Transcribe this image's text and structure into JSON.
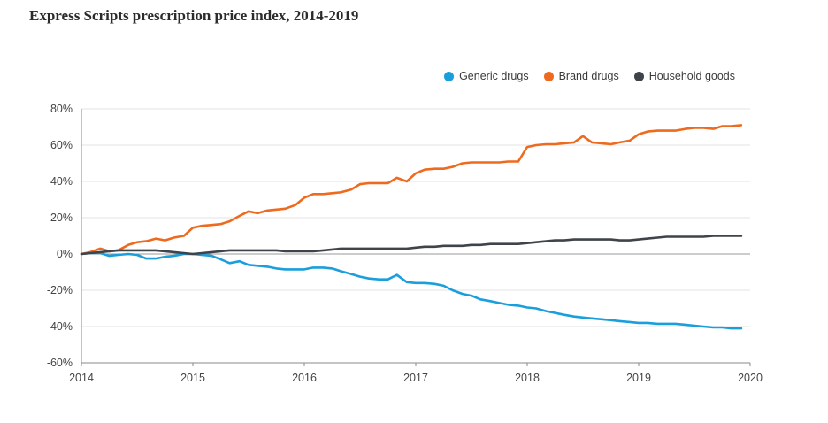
{
  "chart_data": {
    "type": "line",
    "title": "Express Scripts prescription price index, 2014-2019",
    "xlabel": "",
    "ylabel": "",
    "xlim": [
      2014,
      2020
    ],
    "ylim": [
      -60,
      80
    ],
    "x_ticks": [
      2014,
      2015,
      2016,
      2017,
      2018,
      2019,
      2020
    ],
    "x_tick_labels": [
      "2014",
      "2015",
      "2016",
      "2017",
      "2018",
      "2019",
      "2020"
    ],
    "y_ticks": [
      -60,
      -40,
      -20,
      0,
      20,
      40,
      60,
      80
    ],
    "y_tick_labels": [
      "-60%",
      "-40%",
      "-20%",
      "0%",
      "20%",
      "40%",
      "60%",
      "80%"
    ],
    "grid": "horizontal",
    "legend": "top-right",
    "series": [
      {
        "name": "Generic drugs",
        "color": "#1a9fdc",
        "x": [
          2014,
          2014.08,
          2014.17,
          2014.25,
          2014.33,
          2014.42,
          2014.5,
          2014.58,
          2014.67,
          2014.75,
          2014.83,
          2014.92,
          2015,
          2015.08,
          2015.17,
          2015.25,
          2015.33,
          2015.42,
          2015.5,
          2015.58,
          2015.67,
          2015.75,
          2015.83,
          2015.92,
          2016,
          2016.08,
          2016.17,
          2016.25,
          2016.33,
          2016.42,
          2016.5,
          2016.58,
          2016.67,
          2016.75,
          2016.83,
          2016.92,
          2017,
          2017.08,
          2017.17,
          2017.25,
          2017.33,
          2017.42,
          2017.5,
          2017.58,
          2017.67,
          2017.75,
          2017.83,
          2017.92,
          2018,
          2018.08,
          2018.17,
          2018.25,
          2018.33,
          2018.42,
          2018.5,
          2018.58,
          2018.67,
          2018.75,
          2018.83,
          2018.92,
          2019,
          2019.08,
          2019.17,
          2019.25,
          2019.33,
          2019.42,
          2019.5,
          2019.58,
          2019.67,
          2019.75,
          2019.83,
          2019.92
        ],
        "values": [
          0,
          0.5,
          0.5,
          -1,
          -0.5,
          0,
          -0.5,
          -2.5,
          -2.5,
          -1.5,
          -1,
          0,
          0,
          -0.5,
          -1,
          -3,
          -5,
          -4,
          -6,
          -6.5,
          -7,
          -8,
          -8.5,
          -8.5,
          -8.5,
          -7.5,
          -7.5,
          -8,
          -9.5,
          -11,
          -12.5,
          -13.5,
          -14,
          -14,
          -11.5,
          -15.5,
          -16,
          -16,
          -16.5,
          -17.5,
          -20,
          -22,
          -23,
          -25,
          -26,
          -27,
          -28,
          -28.5,
          -29.5,
          -30,
          -31.5,
          -32.5,
          -33.5,
          -34.5,
          -35,
          -35.5,
          -36,
          -36.5,
          -37,
          -37.5,
          -38,
          -38,
          -38.5,
          -38.5,
          -38.5,
          -39,
          -39.5,
          -40,
          -40.5,
          -40.5,
          -41,
          -41
        ]
      },
      {
        "name": "Brand drugs",
        "color": "#ee6a1e",
        "x": [
          2014,
          2014.08,
          2014.17,
          2014.25,
          2014.33,
          2014.42,
          2014.5,
          2014.58,
          2014.67,
          2014.75,
          2014.83,
          2014.92,
          2015,
          2015.08,
          2015.17,
          2015.25,
          2015.33,
          2015.42,
          2015.5,
          2015.58,
          2015.67,
          2015.75,
          2015.83,
          2015.92,
          2016,
          2016.08,
          2016.17,
          2016.25,
          2016.33,
          2016.42,
          2016.5,
          2016.58,
          2016.67,
          2016.75,
          2016.83,
          2016.92,
          2017,
          2017.08,
          2017.17,
          2017.25,
          2017.33,
          2017.42,
          2017.5,
          2017.58,
          2017.67,
          2017.75,
          2017.83,
          2017.92,
          2018,
          2018.08,
          2018.17,
          2018.25,
          2018.33,
          2018.42,
          2018.5,
          2018.58,
          2018.67,
          2018.75,
          2018.83,
          2018.92,
          2019,
          2019.08,
          2019.17,
          2019.25,
          2019.33,
          2019.42,
          2019.5,
          2019.58,
          2019.67,
          2019.75,
          2019.83,
          2019.92
        ],
        "values": [
          0,
          1,
          3,
          1.5,
          2,
          5,
          6.5,
          7,
          8.5,
          7.5,
          9,
          10,
          14.5,
          15.5,
          16,
          16.5,
          18,
          21,
          23.5,
          22.5,
          24,
          24.5,
          25,
          27,
          31,
          33,
          33,
          33.5,
          34,
          35.5,
          38.5,
          39,
          39,
          39,
          42,
          40,
          44.5,
          46.5,
          47,
          47,
          48,
          50,
          50.5,
          50.5,
          50.5,
          50.5,
          51,
          51,
          59,
          60,
          60.5,
          60.5,
          61,
          61.5,
          65,
          61.5,
          61,
          60.5,
          61.5,
          62.5,
          66,
          67.5,
          68,
          68,
          68,
          69,
          69.5,
          69.5,
          69,
          70.5,
          70.5,
          71
        ]
      },
      {
        "name": "Household goods",
        "color": "#3f444a",
        "x": [
          2014,
          2014.08,
          2014.17,
          2014.25,
          2014.33,
          2014.42,
          2014.5,
          2014.58,
          2014.67,
          2014.75,
          2014.83,
          2014.92,
          2015,
          2015.08,
          2015.17,
          2015.25,
          2015.33,
          2015.42,
          2015.5,
          2015.58,
          2015.67,
          2015.75,
          2015.83,
          2015.92,
          2016,
          2016.08,
          2016.17,
          2016.25,
          2016.33,
          2016.42,
          2016.5,
          2016.58,
          2016.67,
          2016.75,
          2016.83,
          2016.92,
          2017,
          2017.08,
          2017.17,
          2017.25,
          2017.33,
          2017.42,
          2017.5,
          2017.58,
          2017.67,
          2017.75,
          2017.83,
          2017.92,
          2018,
          2018.08,
          2018.17,
          2018.25,
          2018.33,
          2018.42,
          2018.5,
          2018.58,
          2018.67,
          2018.75,
          2018.83,
          2018.92,
          2019,
          2019.08,
          2019.17,
          2019.25,
          2019.33,
          2019.42,
          2019.5,
          2019.58,
          2019.67,
          2019.75,
          2019.83,
          2019.92
        ],
        "values": [
          0,
          0.5,
          1,
          1.5,
          2,
          2,
          2,
          2,
          2,
          1.5,
          1,
          0.5,
          0,
          0.5,
          1,
          1.5,
          2,
          2,
          2,
          2,
          2,
          2,
          1.5,
          1.5,
          1.5,
          1.5,
          2,
          2.5,
          3,
          3,
          3,
          3,
          3,
          3,
          3,
          3,
          3.5,
          4,
          4,
          4.5,
          4.5,
          4.5,
          5,
          5,
          5.5,
          5.5,
          5.5,
          5.5,
          6,
          6.5,
          7,
          7.5,
          7.5,
          8,
          8,
          8,
          8,
          8,
          7.5,
          7.5,
          8,
          8.5,
          9,
          9.5,
          9.5,
          9.5,
          9.5,
          9.5,
          10,
          10,
          10,
          10
        ]
      }
    ]
  }
}
